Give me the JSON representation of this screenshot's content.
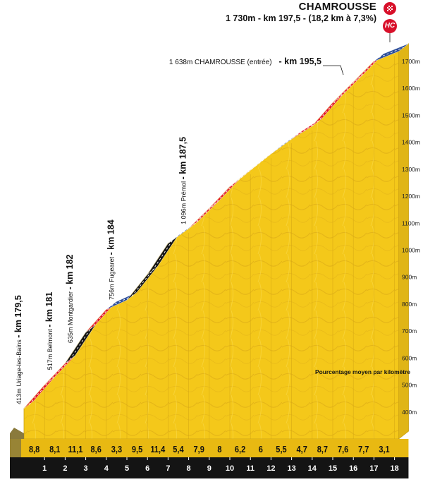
{
  "header": {
    "title": "CHAMROUSSE",
    "subtitle": "1 730m - km 197,5 - (18,2 km à 7,3%)",
    "category_badge": "HC",
    "finish_badge_icon": "checkered-finish-icon"
  },
  "chart_data": {
    "type": "area",
    "title": "CHAMROUSSE",
    "subtitle": "1 730m - km 197,5 - (18,2 km à 7,3%)",
    "x_unit": "km",
    "y_unit": "m",
    "xlim": [
      0,
      18.2
    ],
    "ylim": [
      300,
      1750
    ],
    "y_ticks": [
      "400m",
      "500m",
      "600m",
      "700m",
      "800m",
      "900m",
      "1000m",
      "1100m",
      "1200m",
      "1300m",
      "1400m",
      "1500m",
      "1600m",
      "1700m"
    ],
    "x_ticks": [
      "1",
      "2",
      "3",
      "4",
      "5",
      "6",
      "7",
      "8",
      "9",
      "10",
      "11",
      "12",
      "13",
      "14",
      "15",
      "16",
      "17",
      "18"
    ],
    "gradients_label": "Pourcentage moyen par kilomètre",
    "gradients": [
      "8,8",
      "8,1",
      "11,1",
      "8,6",
      "3,3",
      "9,5",
      "11,4",
      "5,4",
      "7,9",
      "8",
      "6,2",
      "6",
      "5,5",
      "4,7",
      "8,7",
      "7,6",
      "7,7",
      "3,1"
    ],
    "segment_colors": [
      "red",
      "red",
      "black",
      "red",
      "blue",
      "black",
      "black",
      "blue",
      "red",
      "red",
      "red",
      "blue",
      "blue",
      "red",
      "red",
      "red",
      "red",
      "blue"
    ],
    "colors": {
      "red": "#e3141f",
      "black": "#141414",
      "blue": "#2c4e9a",
      "terrain": "#f4c81a",
      "base": "#8a7a3c"
    },
    "profile": [
      {
        "x": 0,
        "y": 413
      },
      {
        "x": 1,
        "y": 500
      },
      {
        "x": 2,
        "y": 580
      },
      {
        "x": 3,
        "y": 695
      },
      {
        "x": 4,
        "y": 780
      },
      {
        "x": 5,
        "y": 815
      },
      {
        "x": 6,
        "y": 910
      },
      {
        "x": 7,
        "y": 1025
      },
      {
        "x": 8,
        "y": 1080
      },
      {
        "x": 9,
        "y": 1155
      },
      {
        "x": 10,
        "y": 1235
      },
      {
        "x": 11,
        "y": 1297
      },
      {
        "x": 12,
        "y": 1357
      },
      {
        "x": 13,
        "y": 1412
      },
      {
        "x": 14,
        "y": 1460
      },
      {
        "x": 15,
        "y": 1547
      },
      {
        "x": 16,
        "y": 1623
      },
      {
        "x": 17,
        "y": 1700
      },
      {
        "x": 18.2,
        "y": 1737
      }
    ],
    "waypoints": [
      {
        "alt": "413m",
        "name": "Uriage-les-Bains",
        "km": "- km 179,5",
        "x": 0,
        "y": 413
      },
      {
        "alt": "517m",
        "name": "Belmont",
        "km": "- km 181",
        "x": 1.5,
        "y": 540
      },
      {
        "alt": "635m",
        "name": "Montgardier",
        "km": "- km 182",
        "x": 2.5,
        "y": 640
      },
      {
        "alt": "756m",
        "name": "Fugearet",
        "km": "- km 184",
        "x": 4.5,
        "y": 800
      },
      {
        "alt": "1 096m",
        "name": "Prémol",
        "km": "- km 187,5",
        "x": 8,
        "y": 1080
      }
    ],
    "summit_note": {
      "text": "1 638m CHAMROUSSE (entrée)",
      "km": "- km 195,5"
    }
  }
}
